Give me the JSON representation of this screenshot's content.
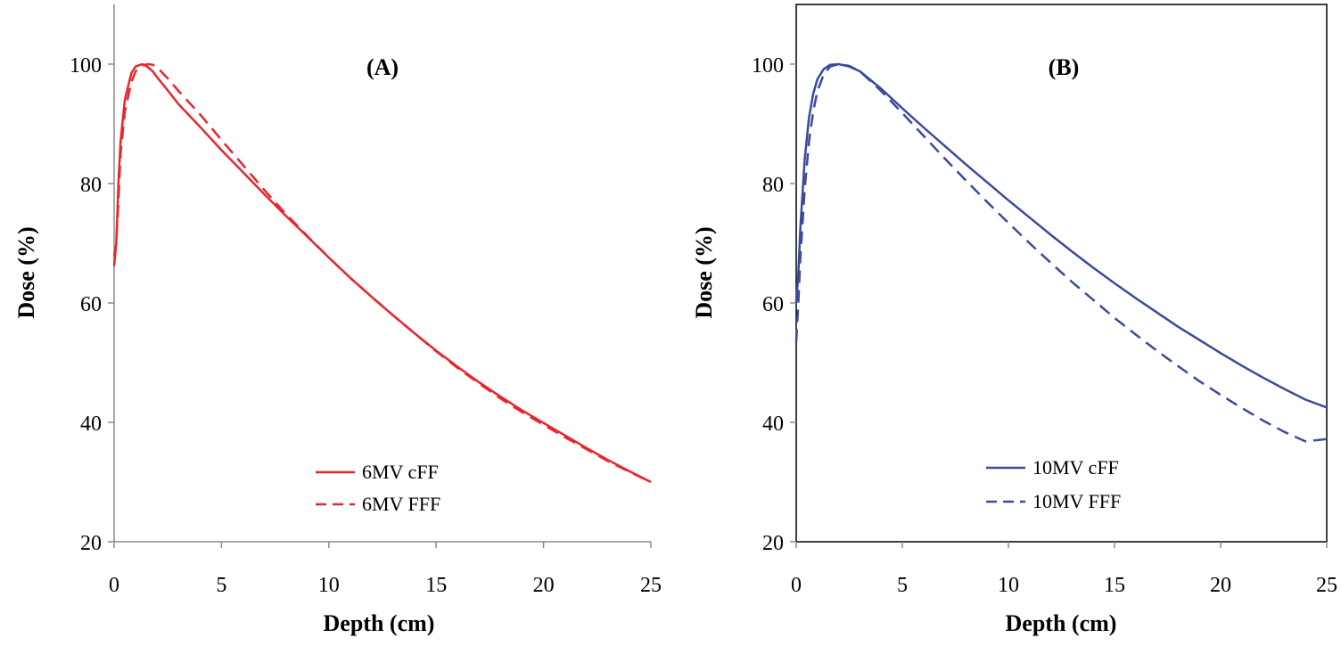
{
  "chart_data": [
    {
      "type": "line",
      "title": "(A)",
      "xlabel": "Depth (cm)",
      "ylabel": "Dose (%)",
      "xlim": [
        0,
        25
      ],
      "ylim": [
        20,
        110
      ],
      "xticks": [
        "0",
        "5",
        "10",
        "15",
        "20",
        "25"
      ],
      "yticks": [
        "20",
        "40",
        "60",
        "80",
        "100"
      ],
      "grid": false,
      "legend_position": "bottom-right",
      "series": [
        {
          "name": "6MV cFF",
          "color": "#e8262c",
          "dash": "solid",
          "x": [
            0,
            0.1,
            0.2,
            0.3,
            0.5,
            0.8,
            1.0,
            1.3,
            1.5,
            1.8,
            2.0,
            2.5,
            3.0,
            4.0,
            5.0,
            6.0,
            7.0,
            8.0,
            9.0,
            10.0,
            11.0,
            12.0,
            13.0,
            14.0,
            15.0,
            16.0,
            17.0,
            18.0,
            19.0,
            20.0,
            21.0,
            22.0,
            23.0,
            24.0,
            25.0
          ],
          "y": [
            66.2,
            70,
            80,
            87,
            94,
            98.5,
            99.6,
            100,
            99.7,
            98.8,
            97.8,
            95.6,
            93.3,
            89.5,
            85.6,
            81.9,
            78.2,
            74.6,
            71.1,
            67.6,
            64.2,
            61.0,
            57.9,
            54.9,
            52.0,
            49.3,
            46.7,
            44.3,
            42.0,
            39.9,
            37.8,
            35.7,
            33.7,
            31.8,
            30.0
          ]
        },
        {
          "name": "6MV FFF",
          "color": "#e8262c",
          "dash": "dashed",
          "x": [
            0,
            0.1,
            0.2,
            0.3,
            0.5,
            0.8,
            1.0,
            1.3,
            1.6,
            1.8,
            2.0,
            2.5,
            3.0,
            4.0,
            5.0,
            6.0,
            7.0,
            8.0,
            9.0,
            10.0,
            11.0,
            12.0,
            13.0,
            14.0,
            15.0,
            16.0,
            17.0,
            18.0,
            19.0,
            20.0,
            21.0,
            22.0,
            23.0,
            24.0,
            25.0
          ],
          "y": [
            67.8,
            70,
            77,
            85,
            92,
            97,
            98.8,
            99.8,
            100,
            99.9,
            99.5,
            97.6,
            95.5,
            91.6,
            87.3,
            83.1,
            78.9,
            74.9,
            71.2,
            67.6,
            64.2,
            61.0,
            57.9,
            54.9,
            51.9,
            49.1,
            46.5,
            44.0,
            41.7,
            39.6,
            37.5,
            35.5,
            33.5,
            31.7,
            30.0
          ]
        }
      ]
    },
    {
      "type": "line",
      "title": "(B)",
      "xlabel": "Depth (cm)",
      "ylabel": "Dose (%)",
      "xlim": [
        0,
        25
      ],
      "ylim": [
        20,
        110
      ],
      "xticks": [
        "0",
        "5",
        "10",
        "15",
        "20",
        "25"
      ],
      "yticks": [
        "20",
        "40",
        "60",
        "80",
        "100"
      ],
      "grid": false,
      "legend_position": "bottom-right",
      "series": [
        {
          "name": "10MV cFF",
          "color": "#3b4a9c",
          "dash": "solid",
          "x": [
            0,
            0.1,
            0.2,
            0.4,
            0.6,
            0.8,
            1.0,
            1.3,
            1.6,
            2.0,
            2.5,
            3.0,
            4.0,
            5.0,
            6.0,
            7.0,
            8.0,
            9.0,
            10.0,
            11.0,
            12.0,
            13.0,
            14.0,
            15.0,
            16.0,
            17.0,
            18.0,
            19.0,
            20.0,
            21.0,
            22.0,
            23.0,
            24.0,
            25.0
          ],
          "y": [
            60.0,
            65,
            73,
            84,
            91,
            95,
            97.5,
            99.2,
            99.9,
            100,
            99.6,
            98.8,
            95.9,
            92.6,
            89.4,
            86.3,
            83.2,
            80.2,
            77.2,
            74.3,
            71.4,
            68.6,
            65.9,
            63.3,
            60.8,
            58.4,
            56.0,
            53.8,
            51.6,
            49.5,
            47.5,
            45.6,
            43.8,
            42.5
          ]
        },
        {
          "name": "10MV FFF",
          "color": "#3b4a9c",
          "dash": "dashed",
          "x": [
            0,
            0.1,
            0.2,
            0.4,
            0.6,
            0.8,
            1.0,
            1.3,
            1.6,
            2.0,
            2.5,
            3.0,
            4.0,
            5.0,
            6.0,
            7.0,
            8.0,
            9.0,
            10.0,
            11.0,
            12.0,
            13.0,
            14.0,
            15.0,
            16.0,
            17.0,
            18.0,
            19.0,
            20.0,
            21.0,
            22.0,
            23.0,
            24.0,
            25.0
          ],
          "y": [
            53.5,
            60,
            68,
            79,
            87,
            92,
            95.5,
            98.3,
            99.6,
            100,
            99.7,
            98.8,
            95.5,
            91.8,
            88.0,
            84.2,
            80.5,
            76.9,
            73.4,
            70.0,
            66.7,
            63.5,
            60.5,
            57.5,
            54.7,
            52.0,
            49.4,
            46.9,
            44.6,
            42.4,
            40.3,
            38.4,
            36.8,
            37.2
          ]
        }
      ]
    }
  ]
}
